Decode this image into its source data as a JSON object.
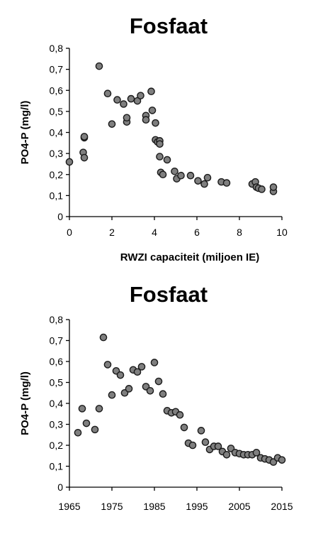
{
  "chart_data": [
    {
      "type": "scatter",
      "title": "Fosfaat",
      "xlabel": "RWZI capaciteit (miljoen IE)",
      "ylabel": "PO4-P (mg/l)",
      "xlim": [
        0,
        10
      ],
      "ylim": [
        0,
        0.8
      ],
      "x_ticks": [
        "0",
        "2",
        "4",
        "6",
        "8",
        "10"
      ],
      "y_ticks": [
        "0",
        "0,1",
        "0,2",
        "0,3",
        "0,4",
        "0,5",
        "0,6",
        "0,7",
        "0,8"
      ],
      "grid": false,
      "legend": "none",
      "marker_color": "#7f7f7f",
      "points": [
        [
          0.0,
          0.26
        ],
        [
          0.65,
          0.305
        ],
        [
          0.7,
          0.375
        ],
        [
          0.7,
          0.38
        ],
        [
          0.7,
          0.28
        ],
        [
          1.4,
          0.715
        ],
        [
          1.8,
          0.585
        ],
        [
          2.0,
          0.44
        ],
        [
          2.25,
          0.555
        ],
        [
          2.55,
          0.535
        ],
        [
          2.7,
          0.45
        ],
        [
          2.7,
          0.47
        ],
        [
          2.9,
          0.56
        ],
        [
          3.2,
          0.55
        ],
        [
          3.35,
          0.575
        ],
        [
          3.6,
          0.48
        ],
        [
          3.6,
          0.46
        ],
        [
          3.85,
          0.595
        ],
        [
          3.9,
          0.505
        ],
        [
          4.05,
          0.365
        ],
        [
          4.05,
          0.445
        ],
        [
          4.15,
          0.355
        ],
        [
          4.25,
          0.36
        ],
        [
          4.25,
          0.345
        ],
        [
          4.25,
          0.285
        ],
        [
          4.3,
          0.21
        ],
        [
          4.4,
          0.2
        ],
        [
          4.6,
          0.27
        ],
        [
          4.95,
          0.215
        ],
        [
          5.05,
          0.18
        ],
        [
          5.25,
          0.195
        ],
        [
          5.7,
          0.195
        ],
        [
          6.05,
          0.17
        ],
        [
          6.35,
          0.155
        ],
        [
          6.5,
          0.185
        ],
        [
          7.15,
          0.165
        ],
        [
          7.4,
          0.16
        ],
        [
          8.6,
          0.155
        ],
        [
          8.75,
          0.165
        ],
        [
          8.8,
          0.14
        ],
        [
          8.9,
          0.135
        ],
        [
          9.05,
          0.13
        ],
        [
          9.6,
          0.12
        ],
        [
          9.6,
          0.14
        ]
      ]
    },
    {
      "type": "scatter",
      "title": "Fosfaat",
      "xlabel": "",
      "ylabel": "PO4-P (mg/l)",
      "xlim": [
        1965,
        2015
      ],
      "ylim": [
        0,
        0.8
      ],
      "x_ticks": [
        "1965",
        "1975",
        "1985",
        "1995",
        "2005",
        "2015"
      ],
      "y_ticks": [
        "0",
        "0,1",
        "0,2",
        "0,3",
        "0,4",
        "0,5",
        "0,6",
        "0,7",
        "0,8"
      ],
      "grid": false,
      "legend": "none",
      "marker_color": "#7f7f7f",
      "points": [
        [
          1967,
          0.26
        ],
        [
          1968,
          0.375
        ],
        [
          1969,
          0.305
        ],
        [
          1971,
          0.275
        ],
        [
          1972,
          0.375
        ],
        [
          1973,
          0.715
        ],
        [
          1974,
          0.585
        ],
        [
          1975,
          0.44
        ],
        [
          1976,
          0.555
        ],
        [
          1977,
          0.535
        ],
        [
          1978,
          0.45
        ],
        [
          1979,
          0.47
        ],
        [
          1980,
          0.56
        ],
        [
          1981,
          0.55
        ],
        [
          1982,
          0.575
        ],
        [
          1983,
          0.48
        ],
        [
          1984,
          0.46
        ],
        [
          1985,
          0.595
        ],
        [
          1986,
          0.505
        ],
        [
          1987,
          0.445
        ],
        [
          1988,
          0.365
        ],
        [
          1989,
          0.355
        ],
        [
          1990,
          0.36
        ],
        [
          1991,
          0.345
        ],
        [
          1992,
          0.285
        ],
        [
          1993,
          0.21
        ],
        [
          1994,
          0.2
        ],
        [
          1996,
          0.27
        ],
        [
          1997,
          0.215
        ],
        [
          1998,
          0.18
        ],
        [
          1999,
          0.195
        ],
        [
          2000,
          0.195
        ],
        [
          2001,
          0.17
        ],
        [
          2002,
          0.155
        ],
        [
          2003,
          0.185
        ],
        [
          2004,
          0.165
        ],
        [
          2005,
          0.16
        ],
        [
          2006,
          0.155
        ],
        [
          2007,
          0.155
        ],
        [
          2008,
          0.155
        ],
        [
          2009,
          0.165
        ],
        [
          2010,
          0.14
        ],
        [
          2011,
          0.135
        ],
        [
          2012,
          0.13
        ],
        [
          2013,
          0.12
        ],
        [
          2014,
          0.14
        ],
        [
          2015,
          0.13
        ]
      ]
    }
  ]
}
